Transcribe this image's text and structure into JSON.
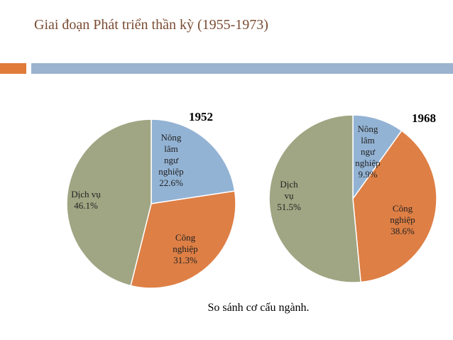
{
  "title": "Giai đoạn Phát triển thần kỳ (1955-1973)",
  "caption": "So sánh cơ cấu ngành.",
  "chart_data": [
    {
      "type": "pie",
      "title": "1952",
      "start_angle_deg": 0,
      "direction": "clockwise",
      "slices": [
        {
          "label": [
            "Nông",
            "lâm",
            "ngư",
            "nghiệp",
            "22.6%"
          ],
          "name": "Nông lâm ngư nghiệp",
          "value": 22.6,
          "color": "#93b3d4"
        },
        {
          "label": [
            "Công",
            "nghiệp",
            "31.3%"
          ],
          "name": "Công nghiệp",
          "value": 31.3,
          "color": "#de7f45"
        },
        {
          "label": [
            "Dịch vụ",
            "46.1%"
          ],
          "name": "Dịch vụ",
          "value": 46.1,
          "color": "#a0a583"
        }
      ]
    },
    {
      "type": "pie",
      "title": "1968",
      "start_angle_deg": 0,
      "direction": "clockwise",
      "slices": [
        {
          "label": [
            "Nông",
            "lâm",
            "ngư",
            "nghiệp",
            "9.9%"
          ],
          "name": "Nông lâm ngư nghiệp",
          "value": 9.9,
          "color": "#93b3d4"
        },
        {
          "label": [
            "Công",
            "nghiệp",
            "38.6%"
          ],
          "name": "Công nghiệp",
          "value": 38.6,
          "color": "#de7f45"
        },
        {
          "label": [
            "Dịch",
            "vụ",
            "51.5%"
          ],
          "name": "Dịch vụ",
          "value": 51.5,
          "color": "#a0a583"
        }
      ]
    }
  ]
}
